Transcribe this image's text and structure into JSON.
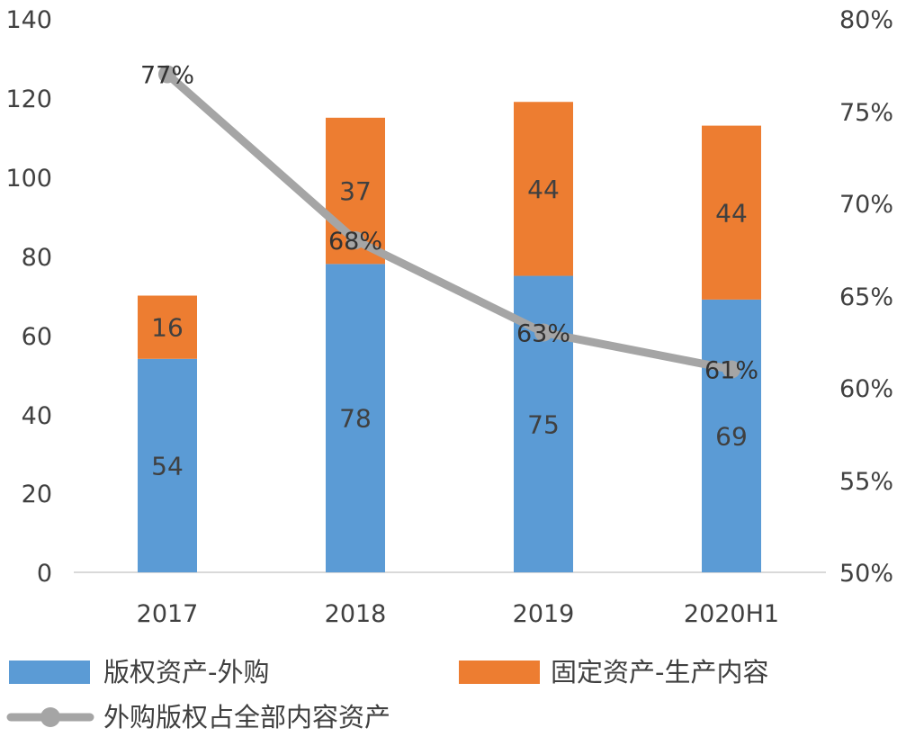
{
  "chart_data": {
    "type": "bar",
    "stacked": true,
    "categories": [
      "2017",
      "2018",
      "2019",
      "2020H1"
    ],
    "series": [
      {
        "name": "版权资产-外购",
        "values": [
          54,
          78,
          75,
          69
        ],
        "color": "#5b9bd5"
      },
      {
        "name": "固定资产-生产内容",
        "values": [
          16,
          37,
          44,
          44
        ],
        "color": "#ed7d31"
      }
    ],
    "line_series": {
      "name": "外购版权占全部内容资产",
      "values": [
        0.77,
        0.68,
        0.63,
        0.61
      ],
      "labels": [
        "77%",
        "68%",
        "63%",
        "61%"
      ],
      "color": "#a5a5a5",
      "axis": "right"
    },
    "y_left": {
      "min": 0,
      "max": 140,
      "ticks": [
        "0",
        "20",
        "40",
        "60",
        "80",
        "100",
        "120",
        "140"
      ]
    },
    "y_right": {
      "min": 0.5,
      "max": 0.8,
      "ticks": [
        "50%",
        "55%",
        "60%",
        "65%",
        "70%",
        "75%",
        "80%"
      ]
    },
    "legend": "bottom",
    "grid": false
  }
}
